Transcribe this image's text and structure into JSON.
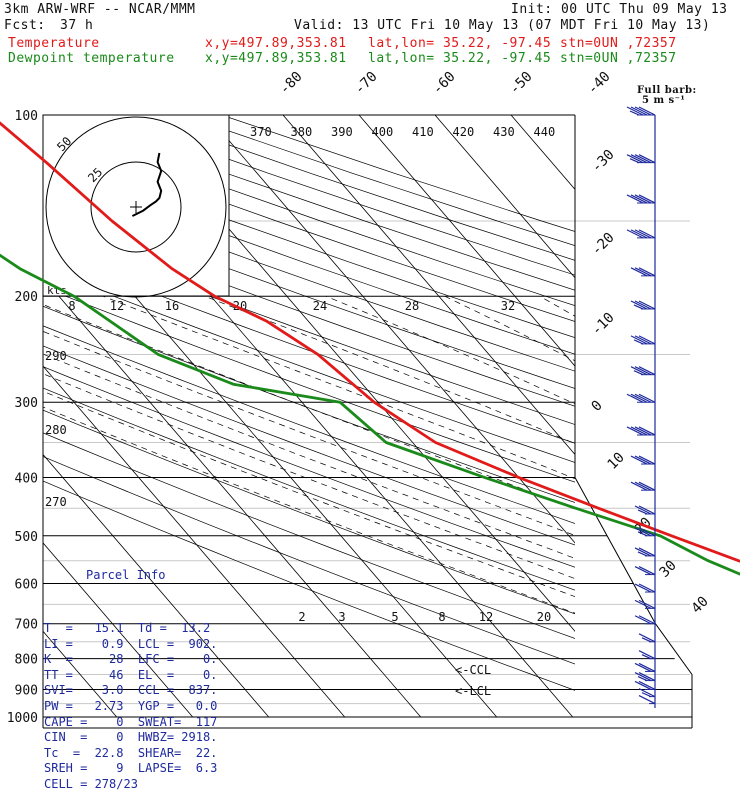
{
  "header": {
    "model": "3km ARW-WRF -- NCAR/MMM",
    "init": "Init: 00 UTC Thu 09 May 13",
    "fcst_label": "Fcst:",
    "fcst_value": "37 h",
    "valid": "Valid: 13 UTC Fri 10 May 13 (07 MDT Fri 10 May 13)",
    "temp_label": "Temperature",
    "dew_label": "Dewpoint temperature",
    "xy": "x,y=497.89,353.81",
    "latlon": "lat,lon= 35.22, -97.45",
    "stn": "stn=0UN ,72357",
    "colors": {
      "temperature": "#e11a1a",
      "dewpoint": "#1a8a1a",
      "text": "#111111",
      "parcel": "#1f2a9e",
      "barb": "#1f2a9e"
    }
  },
  "barb_key": {
    "title": "Full barb:",
    "value": "5 m s⁻¹"
  },
  "parcel_info": {
    "title": "Parcel Info",
    "rows": [
      "T  =   15.1  Td =  13.2",
      "LI =    0.9  LCL =  902.",
      "K  =     28  LFC =    0.",
      "TT =     46  EL  =    0.",
      "SVI=    3.0  CCL =  837.",
      "PW =   2.73  YGP =   0.0",
      "CAPE =    0  SWEAT=  117",
      "CIN  =    0  HWBZ= 2918.",
      "Tc  =  22.8  SHEAR=  22.",
      "SREH =    9  LAPSE=  6.3",
      "CELL = 278/23"
    ]
  },
  "chart_data": {
    "type": "line",
    "diagram": "skew-T log-p",
    "y_axis": {
      "label": "pressure (hPa)",
      "scale": "log",
      "range": [
        1000,
        100
      ],
      "ticks": [
        "100",
        "200",
        "300",
        "400",
        "500",
        "600",
        "700",
        "800",
        "900",
        "1000"
      ]
    },
    "isotherm_labels": [
      "-80",
      "-70",
      "-60",
      "-50",
      "-40",
      "-30",
      "-20",
      "-10",
      "0",
      "10",
      "20",
      "30",
      "40"
    ],
    "theta_e_labels": [
      "370",
      "380",
      "390",
      "400",
      "410",
      "420",
      "430",
      "440"
    ],
    "lower_theta_labels": [
      "290",
      "280",
      "270"
    ],
    "mixing_ratio_labels": [
      "2",
      "3",
      "5",
      "8",
      "12",
      "20"
    ],
    "hodograph_speed_labels": [
      "8",
      "12",
      "16",
      "20",
      "24",
      "28",
      "32"
    ],
    "hodograph_unit": "kts",
    "hodograph_ring_labels": [
      "50",
      "25"
    ],
    "annotations": [
      "<-CCL",
      "<-LCL"
    ],
    "series": [
      {
        "name": "Temperature",
        "color": "#e11a1a",
        "x": [
          15.1,
          15.5,
          16.1,
          15.0,
          14.2,
          11.5,
          8.8,
          5.4,
          2.0,
          -4.0,
          -10.5,
          -16.5,
          -23.0,
          -30.0,
          -37.0,
          -40.5,
          -42.5,
          -45.5,
          -49.5,
          -52.0,
          -54.5,
          -56.5,
          -58.5
        ],
        "y": [
          968,
          950,
          925,
          900,
          875,
          850,
          800,
          700,
          650,
          600,
          550,
          500,
          450,
          400,
          350,
          300,
          250,
          220,
          200,
          180,
          150,
          120,
          100
        ]
      },
      {
        "name": "Dewpoint temperature",
        "color": "#1a8a1a",
        "x": [
          13.2,
          13.6,
          12.5,
          11.0,
          4.0,
          5.0,
          0.5,
          -6.5,
          -8.5,
          -10.0,
          -14.5,
          -18.0,
          -26.0,
          -34.5,
          -43.5,
          -45.0,
          -57.0,
          -63.5,
          -68.0,
          -72.0,
          -76.0,
          -80.5,
          -83.0
        ],
        "y": [
          968,
          950,
          925,
          900,
          875,
          850,
          800,
          700,
          650,
          600,
          550,
          500,
          450,
          400,
          350,
          300,
          280,
          250,
          200,
          180,
          150,
          120,
          100
        ]
      }
    ],
    "hodograph": {
      "u_kts": [
        -2,
        4,
        8,
        11,
        13,
        14,
        12,
        13,
        14,
        12,
        13
      ],
      "v_kts": [
        -5,
        -2,
        1,
        3,
        5,
        9,
        14,
        17,
        20,
        25,
        30
      ]
    },
    "wind_barbs_kts": [
      {
        "p": 100,
        "speed": 45
      },
      {
        "p": 120,
        "speed": 45
      },
      {
        "p": 140,
        "speed": 40
      },
      {
        "p": 160,
        "speed": 40
      },
      {
        "p": 185,
        "speed": 30
      },
      {
        "p": 210,
        "speed": 35
      },
      {
        "p": 240,
        "speed": 35
      },
      {
        "p": 270,
        "speed": 35
      },
      {
        "p": 300,
        "speed": 40
      },
      {
        "p": 340,
        "speed": 40
      },
      {
        "p": 380,
        "speed": 30
      },
      {
        "p": 420,
        "speed": 30
      },
      {
        "p": 460,
        "speed": 25
      },
      {
        "p": 500,
        "speed": 25
      },
      {
        "p": 540,
        "speed": 25
      },
      {
        "p": 580,
        "speed": 20
      },
      {
        "p": 620,
        "speed": 20
      },
      {
        "p": 660,
        "speed": 20
      },
      {
        "p": 700,
        "speed": 20
      },
      {
        "p": 750,
        "speed": 15
      },
      {
        "p": 800,
        "speed": 15
      },
      {
        "p": 840,
        "speed": 20
      },
      {
        "p": 870,
        "speed": 25
      },
      {
        "p": 900,
        "speed": 20
      },
      {
        "p": 925,
        "speed": 15
      },
      {
        "p": 950,
        "speed": 10
      }
    ]
  }
}
